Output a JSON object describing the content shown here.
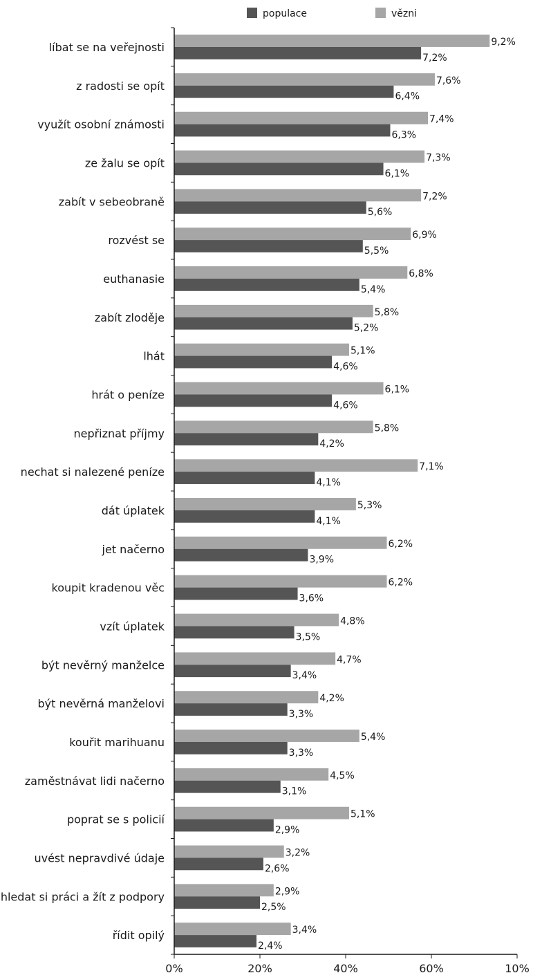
{
  "chart_data": {
    "type": "bar",
    "orientation": "horizontal",
    "categories": [
      "líbat se na veřejnosti",
      "z radosti se opít",
      "využít osobní známosti",
      "ze žalu se opít",
      "zabít v sebeobraně",
      "rozvést se",
      "euthanasie",
      "zabít zloděje",
      "lhát",
      "hrát o peníze",
      "nepřiznat příjmy",
      "nechat si nalezené peníze",
      "dát úplatek",
      "jet načerno",
      "koupit kradenou věc",
      "vzít úplatek",
      "být nevěrný manželce",
      "být nevěrná manželovi",
      "kouřit marihuanu",
      "zaměstnávat lidi načerno",
      "poprat se s policií",
      "uvést nepravdivé údaje",
      "nehledat si práci a žít z podpory",
      "řídit opilý"
    ],
    "series": [
      {
        "name": "populace",
        "color": "#555555",
        "values": [
          7.2,
          6.4,
          6.3,
          6.1,
          5.6,
          5.5,
          5.4,
          5.2,
          4.6,
          4.6,
          4.2,
          4.1,
          4.1,
          3.9,
          3.6,
          3.5,
          3.4,
          3.3,
          3.3,
          3.1,
          2.9,
          2.6,
          2.5,
          2.4
        ],
        "labels": [
          "7,2%",
          "6,4%",
          "6,3%",
          "6,1%",
          "5,6%",
          "5,5%",
          "5,4%",
          "5,2%",
          "4,6%",
          "4,6%",
          "4,2%",
          "4,1%",
          "4,1%",
          "3,9%",
          "3,6%",
          "3,5%",
          "3,4%",
          "3,3%",
          "3,3%",
          "3,1%",
          "2,9%",
          "2,6%",
          "2,5%",
          "2,4%"
        ]
      },
      {
        "name": "vězni",
        "color": "#a6a6a6",
        "values": [
          9.2,
          7.6,
          7.4,
          7.3,
          7.2,
          6.9,
          6.8,
          5.8,
          5.1,
          6.1,
          5.8,
          7.1,
          5.3,
          6.2,
          6.2,
          4.8,
          4.7,
          4.2,
          5.4,
          4.5,
          5.1,
          3.2,
          2.9,
          3.4
        ],
        "labels": [
          "9,2%",
          "7,6%",
          "7,4%",
          "7,3%",
          "7,2%",
          "6,9%",
          "6,8%",
          "5,8%",
          "5,1%",
          "6,1%",
          "5,8%",
          "7,1%",
          "5,3%",
          "6,2%",
          "6,2%",
          "4,8%",
          "4,7%",
          "4,2%",
          "5,4%",
          "4,5%",
          "5,1%",
          "3,2%",
          "2,9%",
          "3,4%"
        ]
      }
    ],
    "xticks": [
      "0%",
      "20%",
      "40%",
      "60%",
      "10%"
    ],
    "xlim": [
      0,
      10
    ],
    "legend_position": "top",
    "grid": false
  }
}
